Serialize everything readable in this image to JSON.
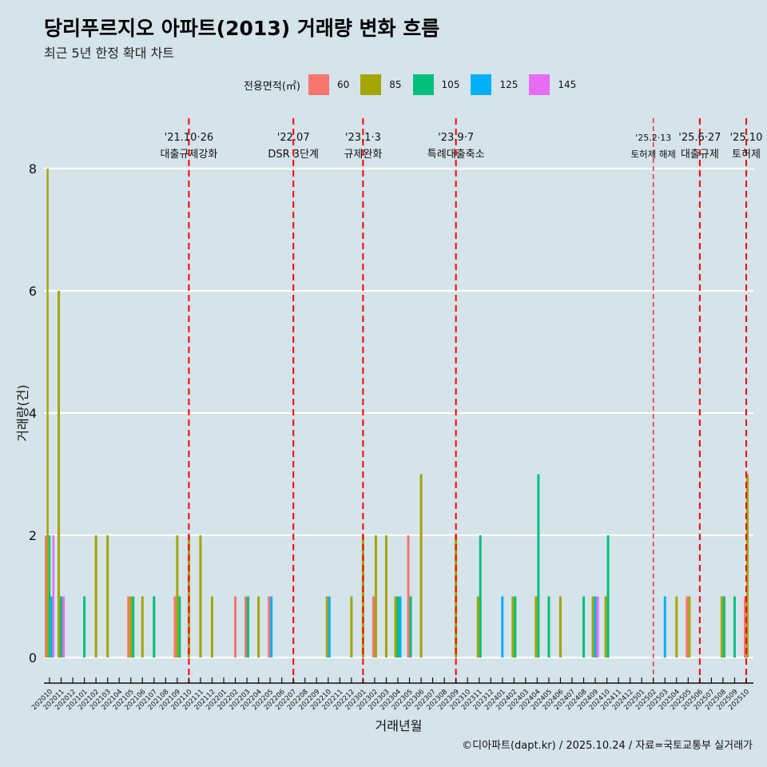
{
  "title": "당리푸르지오 아파트(2013) 거래량 변화 흐름",
  "subtitle": "최근 5년 한정 확대 차트",
  "caption": "©디아파트(dapt.kr) / 2025.10.24 / 자료=국토교통부 실거래가",
  "legend": {
    "title": "전용면적(㎡)",
    "items": [
      {
        "label": "60",
        "color": "#F8766D"
      },
      {
        "label": "85",
        "color": "#A3A500"
      },
      {
        "label": "105",
        "color": "#00BF7D"
      },
      {
        "label": "125",
        "color": "#00B0F6"
      },
      {
        "label": "145",
        "color": "#E76BF3"
      }
    ]
  },
  "chart_data": {
    "type": "bar",
    "title": "당리푸르지오 아파트(2013) 거래량 변화 흐름",
    "xlabel": "거래년월",
    "ylabel": "거래량(건)",
    "ylim": [
      0,
      8
    ],
    "yticks": [
      0,
      2,
      4,
      6,
      8
    ],
    "legend_position": "top",
    "categories": [
      "202010",
      "202011",
      "202012",
      "202101",
      "202102",
      "202103",
      "202104",
      "202105",
      "202106",
      "202107",
      "202108",
      "202109",
      "202110",
      "202111",
      "202112",
      "202201",
      "202202",
      "202203",
      "202204",
      "202205",
      "202206",
      "202207",
      "202208",
      "202209",
      "202210",
      "202211",
      "202212",
      "202301",
      "202302",
      "202303",
      "202304",
      "202305",
      "202306",
      "202307",
      "202308",
      "202309",
      "202310",
      "202311",
      "202312",
      "202401",
      "202402",
      "202403",
      "202404",
      "202405",
      "202406",
      "202407",
      "202408",
      "202409",
      "202410",
      "202411",
      "202412",
      "202501",
      "202502",
      "202503",
      "202504",
      "202505",
      "202506",
      "202507",
      "202508",
      "202509",
      "202510"
    ],
    "series": [
      {
        "name": "60",
        "data": {
          "202010": 2,
          "202105": 1,
          "202109": 1,
          "202202": 1,
          "202203": 1,
          "202205": 1,
          "202302": 1,
          "202305": 2,
          "202505": 1,
          "202510": 1
        }
      },
      {
        "name": "85",
        "data": {
          "202010": 8,
          "202011": 6,
          "202102": 2,
          "202103": 2,
          "202105": 1,
          "202106": 1,
          "202109": 2,
          "202110": 2,
          "202111": 2,
          "202112": 1,
          "202204": 1,
          "202210": 1,
          "202212": 1,
          "202301": 2,
          "202302": 2,
          "202303": 2,
          "202304": 1,
          "202306": 3,
          "202309": 2,
          "202311": 1,
          "202402": 1,
          "202404": 1,
          "202406": 1,
          "202409": 1,
          "202410": 1,
          "202504": 1,
          "202505": 1,
          "202508": 1,
          "202510": 3
        }
      },
      {
        "name": "105",
        "data": {
          "202010": 2,
          "202011": 1,
          "202101": 1,
          "202105": 1,
          "202107": 1,
          "202109": 1,
          "202203": 1,
          "202304": 1,
          "202305": 1,
          "202311": 2,
          "202402": 1,
          "202404": 3,
          "202405": 1,
          "202408": 1,
          "202410": 2,
          "202508": 1,
          "202509": 1
        }
      },
      {
        "name": "125",
        "data": {
          "202010": 1,
          "202205": 1,
          "202210": 1,
          "202304": 1,
          "202401": 1,
          "202409": 1,
          "202503": 1
        }
      },
      {
        "name": "145",
        "data": {
          "202010": 2,
          "202011": 1,
          "202409": 1
        }
      }
    ],
    "events": [
      {
        "month": "202110",
        "date": "'21.10·26",
        "label": "대출규제강화",
        "style": "thick"
      },
      {
        "month": "202207",
        "date": "'22.07",
        "label": "DSR 3단계",
        "style": "thick"
      },
      {
        "month": "202301",
        "date": "'23.1·3",
        "label": "규제완화",
        "style": "thick"
      },
      {
        "month": "202309",
        "date": "'23.9·7",
        "label": "특례대출축소",
        "style": "thick"
      },
      {
        "month": "202502",
        "date": "'25.2·13",
        "label": "토허제 해제",
        "style": "thin"
      },
      {
        "month": "202506",
        "date": "'25.6·27",
        "label": "대출규제",
        "style": "thick"
      },
      {
        "month": "202510",
        "date": "'25.10",
        "label": "토허제",
        "style": "thick"
      }
    ]
  }
}
